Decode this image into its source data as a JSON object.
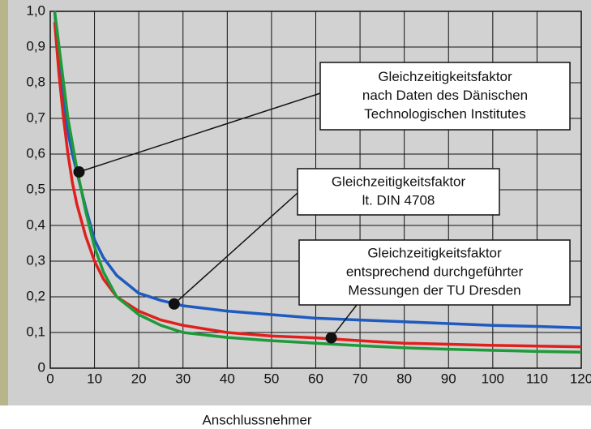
{
  "chart_data": {
    "type": "line",
    "x_label": "Anschlussnehmer",
    "x": [
      1,
      2,
      3,
      4,
      5,
      6,
      8,
      10,
      12,
      15,
      20,
      25,
      30,
      40,
      50,
      60,
      70,
      80,
      90,
      100,
      110,
      120
    ],
    "series": [
      {
        "color": "#1f5bbf",
        "values": [
          1.0,
          0.85,
          0.74,
          0.66,
          0.6,
          0.55,
          0.45,
          0.36,
          0.31,
          0.26,
          0.21,
          0.19,
          0.175,
          0.16,
          0.15,
          0.14,
          0.135,
          0.13,
          0.125,
          0.12,
          0.117,
          0.113
        ]
      },
      {
        "color": "#e0201c",
        "values": [
          0.97,
          0.82,
          0.7,
          0.6,
          0.52,
          0.46,
          0.37,
          0.3,
          0.25,
          0.2,
          0.16,
          0.135,
          0.12,
          0.1,
          0.09,
          0.085,
          0.077,
          0.07,
          0.067,
          0.064,
          0.062,
          0.06
        ]
      },
      {
        "color": "#1e9a3a",
        "values": [
          1.0,
          0.9,
          0.8,
          0.7,
          0.63,
          0.56,
          0.44,
          0.34,
          0.27,
          0.2,
          0.15,
          0.12,
          0.1,
          0.086,
          0.077,
          0.07,
          0.063,
          0.057,
          0.053,
          0.05,
          0.047,
          0.045
        ]
      }
    ],
    "annotations": [
      {
        "lines": [
          "Gleichzeitigkeitsfaktor",
          "nach Daten des Dänischen",
          "Technologischen Institutes"
        ],
        "point": [
          6.5,
          0.55
        ]
      },
      {
        "lines": [
          "Gleichzeitigkeitsfaktor",
          "lt. DIN 4708"
        ],
        "point": [
          28,
          0.18
        ]
      },
      {
        "lines": [
          "Gleichzeitigkeitsfaktor",
          "entsprechend durchgeführter",
          "Messungen der TU Dresden"
        ],
        "point": [
          63.5,
          0.085
        ]
      }
    ],
    "xlim": [
      0,
      120
    ],
    "ylim": [
      0,
      1
    ],
    "xticks": [
      0,
      10,
      20,
      30,
      40,
      50,
      60,
      70,
      80,
      90,
      100,
      110,
      120
    ],
    "yticks": [
      {
        "value": 0,
        "label": "0"
      },
      {
        "value": 0.1,
        "label": "0,1"
      },
      {
        "value": 0.2,
        "label": "0,2"
      },
      {
        "value": 0.3,
        "label": "0,3"
      },
      {
        "value": 0.4,
        "label": "0,4"
      },
      {
        "value": 0.5,
        "label": "0,5"
      },
      {
        "value": 0.6,
        "label": "0,6"
      },
      {
        "value": 0.7,
        "label": "0,7"
      },
      {
        "value": 0.8,
        "label": "0,8"
      },
      {
        "value": 0.9,
        "label": "0,9"
      },
      {
        "value": 1,
        "label": "1,0"
      }
    ],
    "grid": true
  }
}
